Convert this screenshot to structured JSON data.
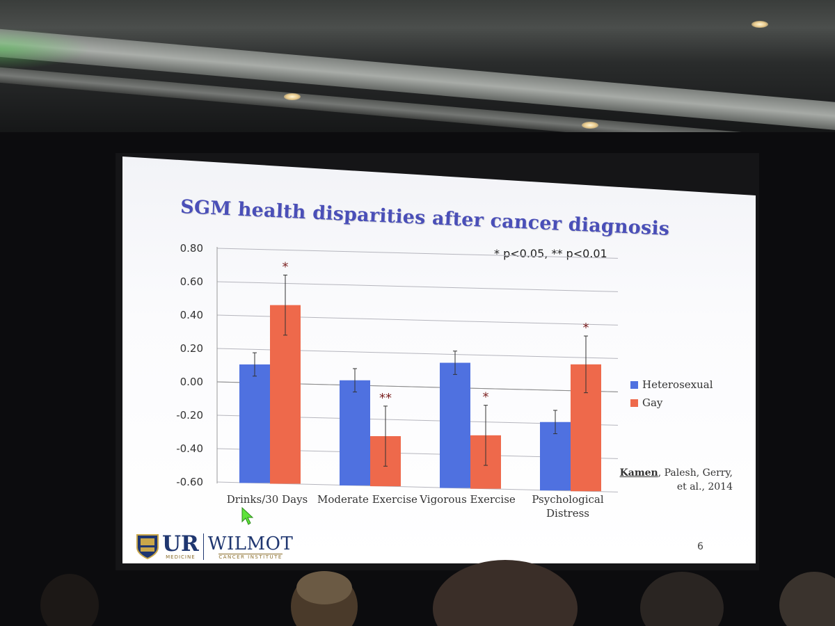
{
  "slide": {
    "title": "SGM health disparities after cancer diagnosis",
    "significance_note": "* p<0.05, ** p<0.01",
    "page_number": "6",
    "citation": {
      "lead_author": "Kamen",
      "rest_line1": ", Palesh, Gerry,",
      "line2": "et al., 2014"
    },
    "logo": {
      "ur": "UR",
      "medicine": "MEDICINE",
      "wilmot": "WILMOT",
      "cancer_institute": "CANCER INSTITUTE"
    }
  },
  "chart_data": {
    "type": "bar",
    "title": "SGM health disparities after cancer diagnosis",
    "categories": [
      "Drinks/30 Days",
      "Moderate Exercise",
      "Vigorous Exercise",
      "Psychological Distress"
    ],
    "category_lines": [
      [
        "Drinks/30 Days"
      ],
      [
        "Moderate Exercise"
      ],
      [
        "Vigorous Exercise"
      ],
      [
        "Psychological",
        "Distress"
      ]
    ],
    "series": [
      {
        "name": "Heterosexual",
        "color": "#4f71e0",
        "values": [
          0.11,
          0.03,
          0.15,
          -0.19
        ],
        "error": [
          0.07,
          0.07,
          0.07,
          0.07
        ]
      },
      {
        "name": "Gay",
        "color": "#ee694b",
        "values": [
          0.47,
          -0.3,
          -0.28,
          0.16
        ],
        "error": [
          0.18,
          0.18,
          0.18,
          0.17
        ]
      }
    ],
    "significance": [
      {
        "category": "Drinks/30 Days",
        "series": "Gay",
        "mark": "*"
      },
      {
        "category": "Moderate Exercise",
        "series": "Gay",
        "mark": "**"
      },
      {
        "category": "Vigorous Exercise",
        "series": "Gay",
        "mark": "*"
      },
      {
        "category": "Psychological Distress",
        "series": "Gay",
        "mark": "*"
      }
    ],
    "y_ticks": [
      "0.80",
      "0.60",
      "0.40",
      "0.20",
      "0.00",
      "-0.20",
      "-0.40",
      "-0.60"
    ],
    "ylim": [
      -0.6,
      0.8
    ],
    "grid": true,
    "legend_position": "right"
  }
}
